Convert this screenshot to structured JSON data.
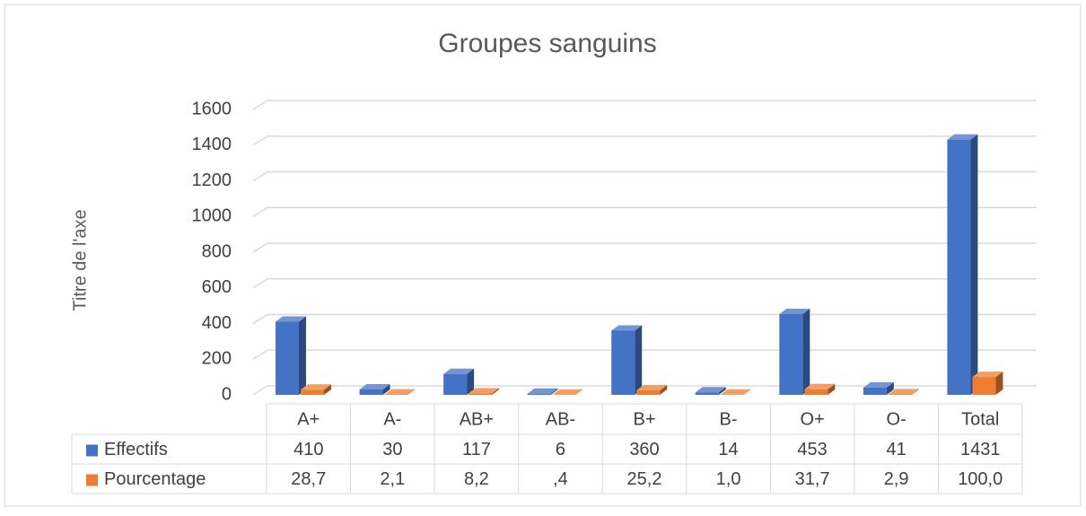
{
  "chart_data": {
    "type": "bar3d",
    "title": "Groupes sanguins",
    "y_label": "Titre de l'axe",
    "categories": [
      "A+",
      "A-",
      "AB+",
      "AB-",
      "B+",
      "B-",
      "O+",
      "O-",
      "Total"
    ],
    "series": [
      {
        "name": "Effectifs",
        "color": "#4472c4",
        "values": [
          410,
          30,
          117,
          6,
          360,
          14,
          453,
          41,
          1431
        ]
      },
      {
        "name": "Pourcentage",
        "color": "#ed7d31",
        "values": [
          28.7,
          2.1,
          8.2,
          0.4,
          25.2,
          1.0,
          31.7,
          2.9,
          100.0
        ],
        "value_labels": [
          "28,7",
          "2,1",
          "8,2",
          ",4",
          "25,2",
          "1,0",
          "31,7",
          "2,9",
          "100,0"
        ]
      }
    ],
    "ylim": [
      0,
      1600
    ],
    "yticks": [
      0,
      200,
      400,
      600,
      800,
      1000,
      1200,
      1400,
      1600
    ],
    "grid": true,
    "data_table": true
  }
}
